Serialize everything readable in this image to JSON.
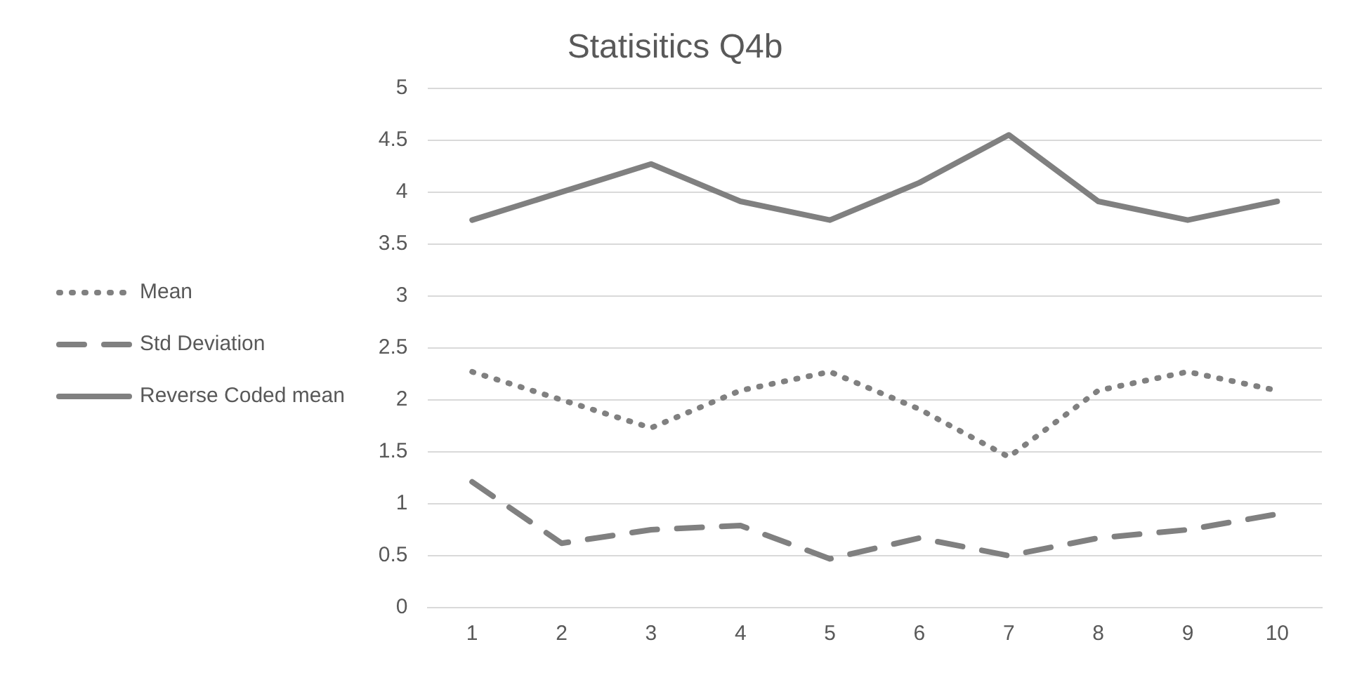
{
  "chart_data": {
    "type": "line",
    "title": "Statisitics Q4b",
    "categories": [
      "1",
      "2",
      "3",
      "4",
      "5",
      "6",
      "7",
      "8",
      "9",
      "10"
    ],
    "series": [
      {
        "name": "Mean",
        "color": "#808080",
        "line_style": "dotted",
        "values": [
          2.27,
          2.0,
          1.73,
          2.09,
          2.27,
          1.91,
          1.45,
          2.09,
          2.27,
          2.09
        ]
      },
      {
        "name": "Std Deviation",
        "color": "#808080",
        "line_style": "dashed",
        "values": [
          1.21,
          0.62,
          0.75,
          0.79,
          0.47,
          0.67,
          0.5,
          0.67,
          0.75,
          0.9
        ]
      },
      {
        "name": "Reverse Coded mean",
        "color": "#808080",
        "line_style": "solid",
        "values": [
          3.73,
          4.0,
          4.27,
          3.91,
          3.73,
          4.09,
          4.55,
          3.91,
          3.73,
          3.91
        ]
      }
    ],
    "ylim": [
      0,
      5
    ],
    "yticks": [
      0,
      0.5,
      1,
      1.5,
      2,
      2.5,
      3,
      3.5,
      4,
      4.5,
      5
    ],
    "grid": "y",
    "legend": "left",
    "marker": "none"
  }
}
